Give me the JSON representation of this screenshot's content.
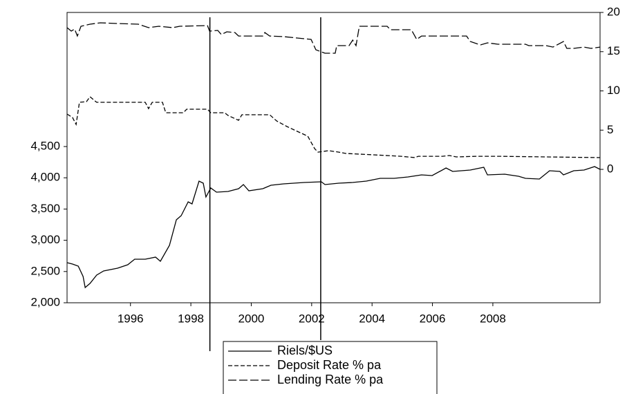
{
  "chart_data": {
    "type": "line",
    "xlim": [
      1993.9,
      2011.55
    ],
    "xticks": [
      1996,
      1998,
      2000,
      2002,
      2004,
      2006,
      2008
    ],
    "ylim": [
      2000,
      6646
    ],
    "yticks": [
      {
        "value": 2000,
        "label": "2,000"
      },
      {
        "value": 2500,
        "label": "2,500"
      },
      {
        "value": 3000,
        "label": "3,000"
      },
      {
        "value": 3500,
        "label": "3,500"
      },
      {
        "value": 4000,
        "label": "4,000"
      },
      {
        "value": 4500,
        "label": "4,500"
      }
    ],
    "y2lim": [
      -17,
      20
    ],
    "y2ticks": [
      0,
      5,
      10,
      15,
      20
    ],
    "vlines": [
      1998.63,
      2002.3
    ],
    "series": [
      {
        "name": "Riels/$US",
        "color": "#000000",
        "dash": "solid",
        "x": [
          1993.9,
          1994.08,
          1994.27,
          1994.43,
          1994.5,
          1994.66,
          1994.88,
          1995.11,
          1995.57,
          1995.91,
          1996.14,
          1996.49,
          1996.83,
          1996.99,
          1997.29,
          1997.52,
          1997.68,
          1997.91,
          1998.04,
          1998.27,
          1998.41,
          1998.5,
          1998.66,
          1998.85,
          1999.23,
          1999.58,
          1999.74,
          1999.92,
          2000.38,
          2000.65,
          2001.07,
          2001.75,
          2002.32,
          2002.44,
          2002.9,
          2003.35,
          2003.81,
          2004.27,
          2004.73,
          2005.19,
          2005.64,
          2005.99,
          2006.45,
          2006.67,
          2007.25,
          2007.7,
          2007.82,
          2008.39,
          2008.85,
          2009.08,
          2009.54,
          2009.88,
          2010.22,
          2010.34,
          2010.68,
          2011.02,
          2011.37,
          2011.55
        ],
        "values": [
          2642,
          2619,
          2586,
          2420,
          2243,
          2310,
          2442,
          2509,
          2553,
          2608,
          2697,
          2697,
          2730,
          2664,
          2918,
          3327,
          3394,
          3615,
          3582,
          3947,
          3914,
          3692,
          3836,
          3770,
          3781,
          3825,
          3892,
          3792,
          3825,
          3881,
          3903,
          3925,
          3936,
          3892,
          3914,
          3925,
          3947,
          3991,
          3991,
          4013,
          4046,
          4035,
          4157,
          4102,
          4124,
          4168,
          4046,
          4057,
          4024,
          3991,
          3980,
          4113,
          4102,
          4046,
          4113,
          4124,
          4179,
          4135
        ]
      },
      {
        "name": "Deposit Rate % pa",
        "color": "#000000",
        "dash": "dashed",
        "axis": "y2",
        "x": [
          1993.9,
          1994.08,
          1994.2,
          1994.31,
          1994.54,
          1994.66,
          1994.88,
          1995.8,
          1996.49,
          1996.6,
          1996.72,
          1997.06,
          1997.17,
          1997.75,
          1997.86,
          1998.55,
          1998.66,
          1999.12,
          1999.23,
          1999.58,
          1999.69,
          2000.61,
          2000.84,
          2001.18,
          2001.52,
          2001.87,
          2002.1,
          2002.21,
          2002.56,
          2002.9,
          2003.13,
          2004.05,
          2004.96,
          2005.42,
          2005.53,
          2006.33,
          2006.56,
          2006.79,
          2007.48,
          2008.17,
          2011.55
        ],
        "values": [
          7.05,
          6.61,
          5.73,
          8.55,
          8.63,
          9.25,
          8.55,
          8.55,
          8.55,
          7.75,
          8.55,
          8.55,
          7.22,
          7.22,
          7.67,
          7.67,
          7.22,
          7.22,
          6.87,
          6.26,
          6.96,
          6.96,
          6.17,
          5.46,
          4.85,
          4.23,
          2.64,
          2.2,
          2.38,
          2.2,
          2.03,
          1.85,
          1.67,
          1.5,
          1.67,
          1.67,
          1.76,
          1.59,
          1.67,
          1.67,
          1.5
        ]
      },
      {
        "name": "Lending Rate % pa",
        "color": "#000000",
        "dash": "longdash",
        "axis": "y2",
        "x": [
          1993.9,
          1994.04,
          1994.15,
          1994.24,
          1994.36,
          1994.66,
          1995.0,
          1995.57,
          1996.26,
          1996.6,
          1996.94,
          1997.4,
          1997.63,
          1998.55,
          1998.62,
          1998.89,
          1999.01,
          1999.19,
          1999.46,
          1999.58,
          2000.38,
          2000.45,
          2000.61,
          2001.07,
          2001.52,
          2001.98,
          2002.14,
          2002.44,
          2002.78,
          2002.83,
          2003.24,
          2003.36,
          2003.47,
          2003.58,
          2004.5,
          2004.61,
          2005.3,
          2005.48,
          2005.64,
          2007.13,
          2007.25,
          2007.59,
          2007.82,
          2008.17,
          2009.08,
          2009.19,
          2009.76,
          2009.99,
          2010.34,
          2010.45,
          2010.68,
          2011.02,
          2011.25,
          2011.55
        ],
        "values": [
          18.06,
          17.62,
          17.89,
          17.0,
          18.24,
          18.5,
          18.68,
          18.59,
          18.5,
          18.06,
          18.24,
          18.06,
          18.24,
          18.33,
          17.62,
          17.71,
          17.18,
          17.53,
          17.44,
          17.0,
          17.0,
          17.44,
          17.0,
          16.92,
          16.74,
          16.56,
          15.24,
          14.8,
          14.8,
          15.77,
          15.77,
          16.48,
          15.77,
          18.24,
          18.24,
          17.8,
          17.8,
          16.56,
          17.0,
          17.0,
          16.3,
          15.86,
          16.12,
          15.95,
          15.95,
          15.77,
          15.77,
          15.59,
          16.3,
          15.42,
          15.42,
          15.59,
          15.42,
          15.59
        ]
      }
    ]
  }
}
